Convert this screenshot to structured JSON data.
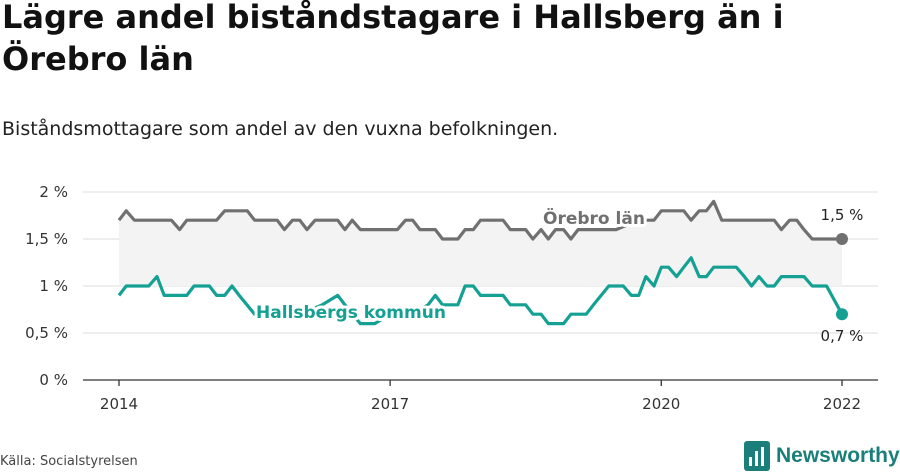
{
  "title": "Lägre andel biståndstagare i Hallsberg än i Örebro län",
  "subtitle": "Biståndsmottagare som andel av den vuxna befolkningen.",
  "source": "Källa: Socialstyrelsen",
  "brand": "Newsworthy",
  "colors": {
    "county": "#707070",
    "municipality": "#14a193",
    "band": "#f3f3f3",
    "brand": "#1a7f7a"
  },
  "chart_data": {
    "type": "line",
    "title": "Lägre andel biståndstagare i Hallsberg än i Örebro län",
    "xlabel": "",
    "ylabel": "",
    "x_ticks": [
      "2014",
      "2017",
      "2020",
      "2022"
    ],
    "y_ticks": [
      "0 %",
      "0,5 %",
      "1 %",
      "1,5 %",
      "2 %"
    ],
    "ylim": [
      0,
      2
    ],
    "xlim": [
      2014,
      2022
    ],
    "grid": true,
    "series": [
      {
        "name": "Örebro län",
        "end_label": "1,5 %",
        "points": [
          [
            2014.0,
            1.7
          ],
          [
            2014.08,
            1.8
          ],
          [
            2014.17,
            1.7
          ],
          [
            2014.33,
            1.7
          ],
          [
            2014.5,
            1.7
          ],
          [
            2014.58,
            1.7
          ],
          [
            2014.67,
            1.6
          ],
          [
            2014.75,
            1.7
          ],
          [
            2014.92,
            1.7
          ],
          [
            2015.08,
            1.7
          ],
          [
            2015.17,
            1.8
          ],
          [
            2015.42,
            1.8
          ],
          [
            2015.5,
            1.7
          ],
          [
            2015.75,
            1.7
          ],
          [
            2015.83,
            1.6
          ],
          [
            2015.92,
            1.7
          ],
          [
            2016.0,
            1.7
          ],
          [
            2016.08,
            1.6
          ],
          [
            2016.17,
            1.7
          ],
          [
            2016.42,
            1.7
          ],
          [
            2016.5,
            1.6
          ],
          [
            2016.58,
            1.7
          ],
          [
            2016.67,
            1.6
          ],
          [
            2016.83,
            1.6
          ],
          [
            2017.0,
            1.6
          ],
          [
            2017.08,
            1.6
          ],
          [
            2017.17,
            1.7
          ],
          [
            2017.25,
            1.7
          ],
          [
            2017.33,
            1.6
          ],
          [
            2017.5,
            1.6
          ],
          [
            2017.58,
            1.5
          ],
          [
            2017.75,
            1.5
          ],
          [
            2017.83,
            1.6
          ],
          [
            2017.92,
            1.6
          ],
          [
            2018.0,
            1.7
          ],
          [
            2018.25,
            1.7
          ],
          [
            2018.33,
            1.6
          ],
          [
            2018.5,
            1.6
          ],
          [
            2018.58,
            1.5
          ],
          [
            2018.67,
            1.6
          ],
          [
            2018.75,
            1.5
          ],
          [
            2018.83,
            1.6
          ],
          [
            2018.92,
            1.6
          ],
          [
            2019.0,
            1.5
          ],
          [
            2019.08,
            1.6
          ],
          [
            2019.25,
            1.6
          ],
          [
            2019.33,
            1.6
          ],
          [
            2019.42,
            1.6
          ],
          [
            2019.5,
            1.6
          ],
          [
            2019.75,
            1.7
          ],
          [
            2019.92,
            1.7
          ],
          [
            2020.0,
            1.8
          ],
          [
            2020.25,
            1.8
          ],
          [
            2020.33,
            1.7
          ],
          [
            2020.42,
            1.8
          ],
          [
            2020.5,
            1.8
          ],
          [
            2020.58,
            1.9
          ],
          [
            2020.67,
            1.7
          ],
          [
            2020.83,
            1.7
          ],
          [
            2021.0,
            1.7
          ],
          [
            2021.08,
            1.7
          ],
          [
            2021.25,
            1.7
          ],
          [
            2021.33,
            1.6
          ],
          [
            2021.42,
            1.7
          ],
          [
            2021.5,
            1.7
          ],
          [
            2021.58,
            1.6
          ],
          [
            2021.67,
            1.5
          ],
          [
            2021.83,
            1.5
          ],
          [
            2022.0,
            1.5
          ]
        ]
      },
      {
        "name": "Hallsbergs kommun",
        "end_label": "0,7 %",
        "points": [
          [
            2014.0,
            0.9
          ],
          [
            2014.08,
            1.0
          ],
          [
            2014.33,
            1.0
          ],
          [
            2014.42,
            1.1
          ],
          [
            2014.5,
            0.9
          ],
          [
            2014.75,
            0.9
          ],
          [
            2014.83,
            1.0
          ],
          [
            2015.0,
            1.0
          ],
          [
            2015.08,
            0.9
          ],
          [
            2015.17,
            0.9
          ],
          [
            2015.25,
            1.0
          ],
          [
            2015.33,
            0.9
          ],
          [
            2015.5,
            0.7
          ],
          [
            2015.75,
            0.7
          ],
          [
            2016.0,
            0.7
          ],
          [
            2016.25,
            0.8
          ],
          [
            2016.42,
            0.9
          ],
          [
            2016.5,
            0.8
          ],
          [
            2016.67,
            0.6
          ],
          [
            2016.83,
            0.6
          ],
          [
            2017.0,
            0.7
          ],
          [
            2017.25,
            0.7
          ],
          [
            2017.42,
            0.8
          ],
          [
            2017.5,
            0.9
          ],
          [
            2017.58,
            0.8
          ],
          [
            2017.75,
            0.8
          ],
          [
            2017.83,
            1.0
          ],
          [
            2017.92,
            1.0
          ],
          [
            2018.0,
            0.9
          ],
          [
            2018.25,
            0.9
          ],
          [
            2018.33,
            0.8
          ],
          [
            2018.5,
            0.8
          ],
          [
            2018.58,
            0.7
          ],
          [
            2018.67,
            0.7
          ],
          [
            2018.75,
            0.6
          ],
          [
            2018.92,
            0.6
          ],
          [
            2019.0,
            0.7
          ],
          [
            2019.17,
            0.7
          ],
          [
            2019.25,
            0.8
          ],
          [
            2019.42,
            1.0
          ],
          [
            2019.58,
            1.0
          ],
          [
            2019.67,
            0.9
          ],
          [
            2019.75,
            0.9
          ],
          [
            2019.83,
            1.1
          ],
          [
            2019.92,
            1.0
          ],
          [
            2020.0,
            1.2
          ],
          [
            2020.08,
            1.2
          ],
          [
            2020.17,
            1.1
          ],
          [
            2020.25,
            1.2
          ],
          [
            2020.33,
            1.3
          ],
          [
            2020.42,
            1.1
          ],
          [
            2020.5,
            1.1
          ],
          [
            2020.58,
            1.2
          ],
          [
            2020.83,
            1.2
          ],
          [
            2020.92,
            1.1
          ],
          [
            2021.0,
            1.0
          ],
          [
            2021.08,
            1.1
          ],
          [
            2021.17,
            1.0
          ],
          [
            2021.25,
            1.0
          ],
          [
            2021.33,
            1.1
          ],
          [
            2021.58,
            1.1
          ],
          [
            2021.67,
            1.0
          ],
          [
            2021.83,
            1.0
          ],
          [
            2022.0,
            0.7
          ]
        ]
      }
    ]
  }
}
